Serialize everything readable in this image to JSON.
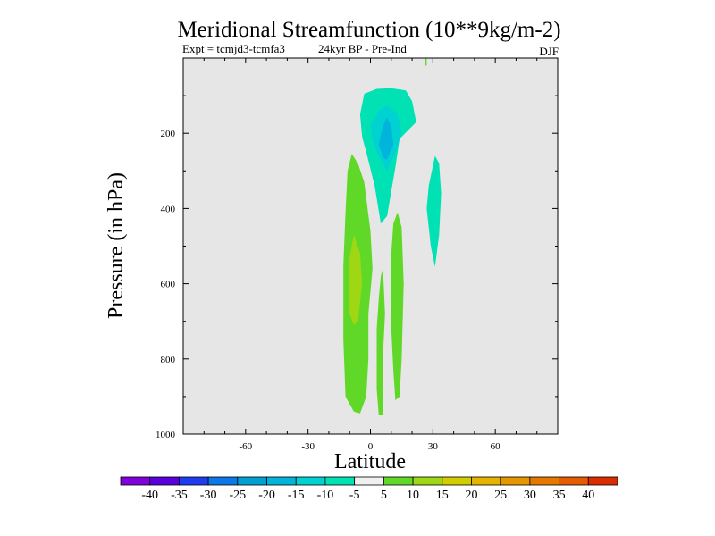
{
  "chart_data": {
    "type": "heatmap",
    "title": "Meridional Streamfunction (10**9kg/m-2)",
    "subtitle_left": "Expt = tcmjd3-tcmfa3",
    "subtitle_mid": "24kyr BP - Pre-Ind",
    "season": "DJF",
    "xlabel": "Latitude",
    "ylabel": "Pressure (in hPa)",
    "xlim": [
      -90,
      90
    ],
    "ylim": [
      1000,
      0
    ],
    "x_ticks": [
      -60,
      -30,
      0,
      30,
      60
    ],
    "y_ticks": [
      200,
      400,
      600,
      800,
      1000
    ],
    "background_color": "#e6e6e6",
    "colorbar": {
      "colors": [
        "#8200dc",
        "#5a00dc",
        "#1e3cf0",
        "#0a78e6",
        "#00a0d2",
        "#00b4dc",
        "#00d2d2",
        "#00e1b4",
        "#f0f0f0",
        "#60d828",
        "#a0d714",
        "#d2cd00",
        "#e6b400",
        "#e69600",
        "#e67800",
        "#e65a00",
        "#dc2d00"
      ],
      "labels": [
        "-40",
        "-35",
        "-30",
        "-25",
        "-20",
        "-15",
        "-10",
        "-5",
        "5",
        "10",
        "15",
        "20",
        "25",
        "30",
        "35",
        "40"
      ]
    },
    "regions": [
      {
        "level": "-5",
        "color": "#00e1b4",
        "points": [
          [
            -3,
            95
          ],
          [
            3,
            82
          ],
          [
            10,
            80
          ],
          [
            17,
            86
          ],
          [
            20,
            115
          ],
          [
            22,
            170
          ],
          [
            14,
            215
          ],
          [
            12,
            290
          ],
          [
            8,
            420
          ],
          [
            5,
            440
          ],
          [
            2,
            340
          ],
          [
            -2,
            250
          ],
          [
            -4,
            210
          ],
          [
            -5,
            150
          ]
        ]
      },
      {
        "level": "-10",
        "color": "#00d2d2",
        "points": [
          [
            0,
            180
          ],
          [
            4,
            140
          ],
          [
            8,
            125
          ],
          [
            13,
            150
          ],
          [
            15,
            200
          ],
          [
            12,
            250
          ],
          [
            8,
            300
          ],
          [
            4,
            260
          ],
          [
            1,
            220
          ]
        ]
      },
      {
        "level": "-15",
        "color": "#00b4dc",
        "points": [
          [
            4,
            230
          ],
          [
            6,
            180
          ],
          [
            8,
            158
          ],
          [
            10,
            180
          ],
          [
            11,
            230
          ],
          [
            8,
            270
          ],
          [
            6,
            265
          ]
        ]
      },
      {
        "level": "-5",
        "color": "#00e1b4",
        "points": [
          [
            28,
            340
          ],
          [
            31,
            260
          ],
          [
            33,
            280
          ],
          [
            34,
            360
          ],
          [
            33,
            470
          ],
          [
            31,
            555
          ],
          [
            29,
            500
          ],
          [
            27,
            400
          ]
        ]
      },
      {
        "level": "5",
        "color": "#60d828",
        "points": [
          [
            -12,
            410
          ],
          [
            -11,
            300
          ],
          [
            -9,
            255
          ],
          [
            -6,
            280
          ],
          [
            -3,
            330
          ],
          [
            0,
            460
          ],
          [
            1,
            560
          ],
          [
            -1,
            680
          ],
          [
            -1,
            800
          ],
          [
            -2,
            900
          ],
          [
            -5,
            945
          ],
          [
            -8,
            940
          ],
          [
            -12,
            900
          ],
          [
            -13,
            750
          ],
          [
            -13,
            550
          ]
        ]
      },
      {
        "level": "10",
        "color": "#a0d714",
        "points": [
          [
            -10,
            600
          ],
          [
            -10,
            530
          ],
          [
            -8,
            470
          ],
          [
            -5,
            520
          ],
          [
            -4,
            600
          ],
          [
            -6,
            700
          ],
          [
            -8,
            710
          ],
          [
            -10,
            680
          ]
        ]
      },
      {
        "level": "5",
        "color": "#60d828",
        "points": [
          [
            10,
            520
          ],
          [
            11,
            440
          ],
          [
            13,
            410
          ],
          [
            15,
            450
          ],
          [
            16,
            600
          ],
          [
            15,
            800
          ],
          [
            14,
            900
          ],
          [
            12,
            910
          ],
          [
            11,
            830
          ],
          [
            10,
            720
          ]
        ]
      },
      {
        "level": "5",
        "color": "#60d828",
        "points": [
          [
            5,
            580
          ],
          [
            6,
            560
          ],
          [
            7,
            680
          ],
          [
            6,
            790
          ],
          [
            6,
            950
          ],
          [
            4,
            950
          ],
          [
            3,
            880
          ],
          [
            3,
            720
          ],
          [
            4,
            640
          ]
        ]
      },
      {
        "level": "5",
        "color": "#60d828",
        "points": [
          [
            26,
            -10
          ],
          [
            27,
            -10
          ],
          [
            27,
            20
          ],
          [
            26,
            20
          ]
        ]
      }
    ]
  }
}
